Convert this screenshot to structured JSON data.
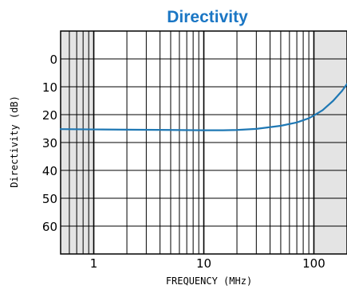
{
  "chart_data": {
    "type": "line",
    "title": "Directivity",
    "xlabel": "FREQUENCY (MHz)",
    "ylabel": "Directivity (dB)",
    "x_scale": "log",
    "xlim": [
      0.5,
      200
    ],
    "ylim": [
      -10,
      70
    ],
    "y_inverted": true,
    "x_tick_labels": [
      "1",
      "10",
      "100"
    ],
    "x_tick_values": [
      1,
      10,
      100
    ],
    "y_tick_labels": [
      "0",
      "10",
      "20",
      "30",
      "40",
      "50",
      "60"
    ],
    "y_tick_values": [
      0,
      10,
      20,
      30,
      40,
      50,
      60
    ],
    "grid": true,
    "shaded_x_ranges": [
      [
        0.5,
        1
      ],
      [
        100,
        200
      ]
    ],
    "colors": {
      "title": "#1a76c4",
      "series": "#1f78b4",
      "shade": "#e4e4e4",
      "grid": "#000000"
    },
    "series": [
      {
        "x": [
          0.5,
          1,
          2,
          5,
          10,
          15,
          20,
          30,
          50,
          70,
          90,
          100,
          120,
          150,
          180,
          200
        ],
        "y": [
          25.2,
          25.3,
          25.4,
          25.5,
          25.6,
          25.6,
          25.5,
          25.1,
          24.0,
          22.8,
          21.3,
          20.3,
          18.4,
          15.0,
          11.5,
          9.0
        ]
      }
    ]
  }
}
